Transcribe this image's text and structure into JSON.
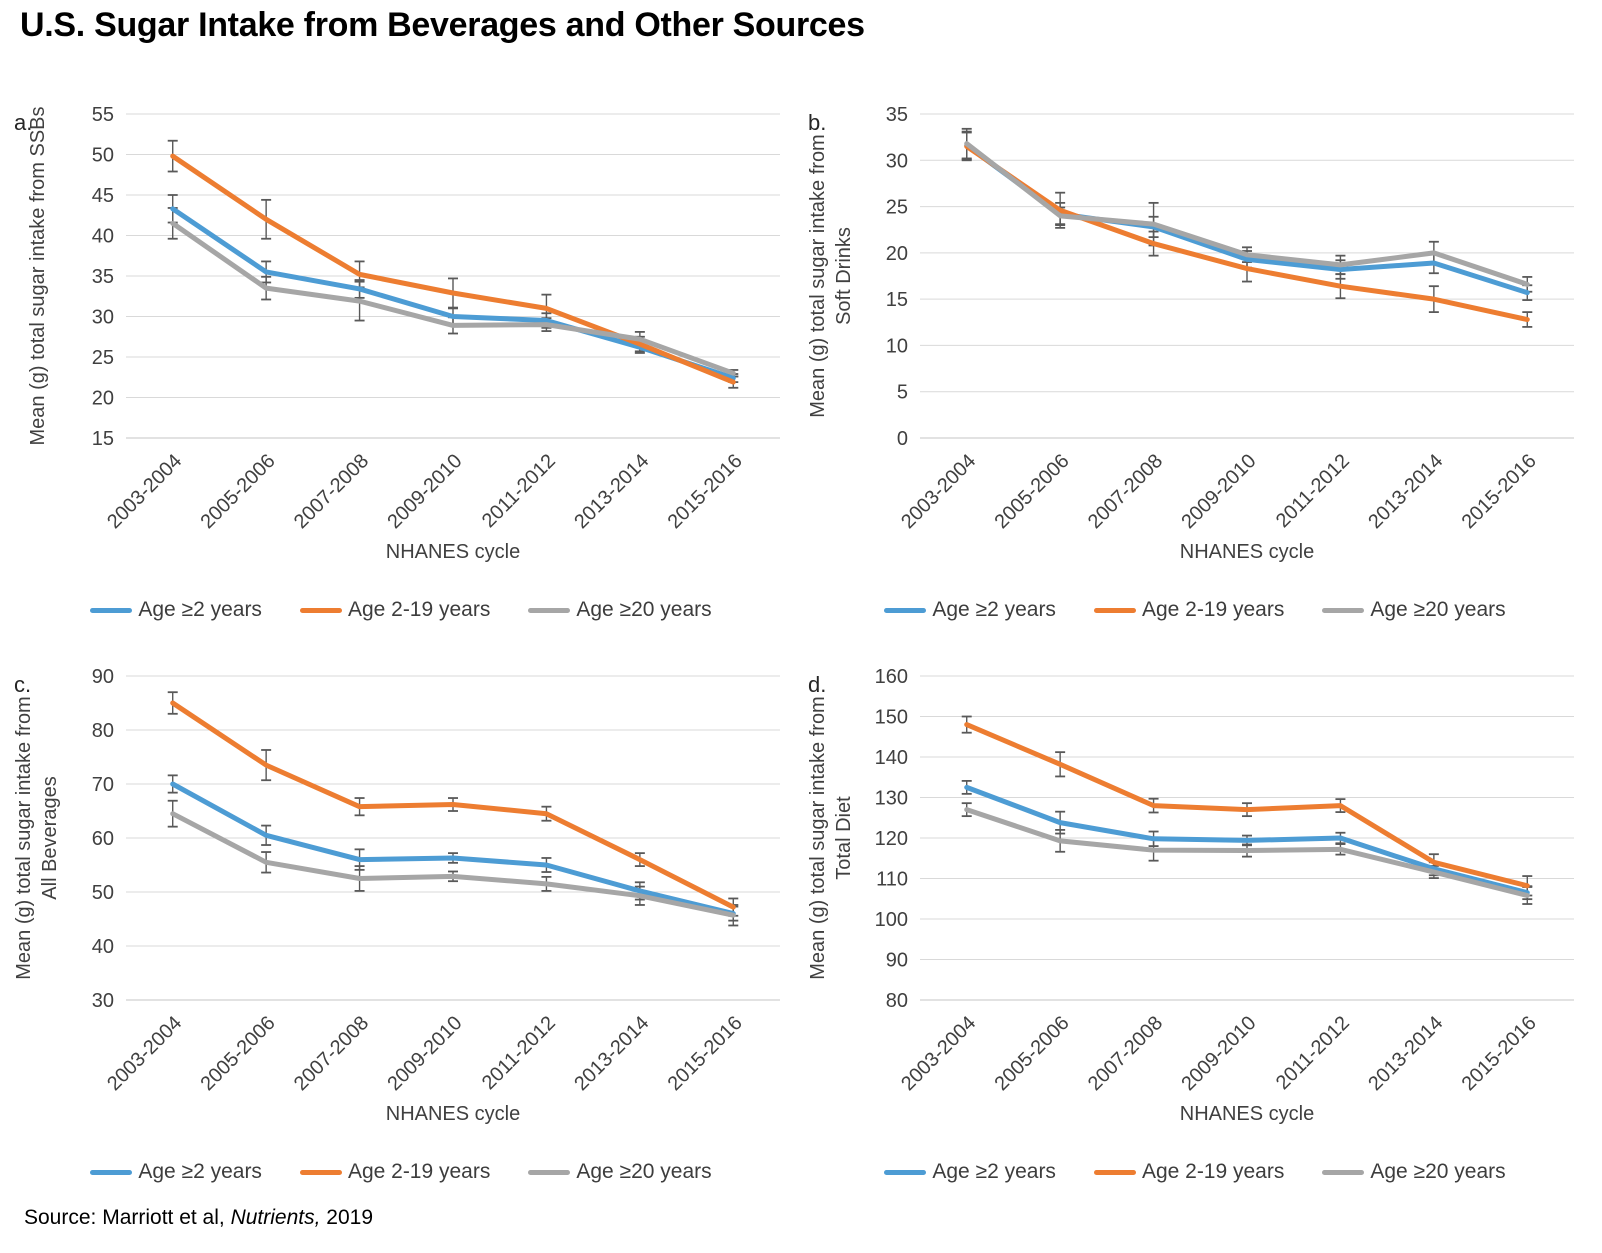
{
  "title": "U.S. Sugar Intake from Beverages and Other Sources",
  "source": {
    "prefix": "Source: Marriott et al, ",
    "italic": "Nutrients,",
    "suffix": " 2019"
  },
  "legend": {
    "items": [
      {
        "label": "Age ≥2 years",
        "color": "#4D9CD4"
      },
      {
        "label": "Age 2-19 years",
        "color": "#ED7D31"
      },
      {
        "label": "Age ≥20 years",
        "color": "#A6A6A6"
      }
    ]
  },
  "chart_data": [
    {
      "type": "line",
      "letter": "a.",
      "ylabel": "Mean (g) total sugar intake from SSBs",
      "ylabel_lines": [
        "Mean (g) total sugar intake from SSBs"
      ],
      "xlabel": "NHANES cycle",
      "ylim": [
        15,
        55
      ],
      "ytick_step": 5,
      "grid": true,
      "legend_position": "bottom",
      "categories": [
        "2003-2004",
        "2005-2006",
        "2007-2008",
        "2009-2010",
        "2011-2012",
        "2013-2014",
        "2015-2016"
      ],
      "series": [
        {
          "name": "Age ≥2 years",
          "color": "#4D9CD4",
          "values": [
            43.3,
            35.5,
            33.4,
            30.0,
            29.5,
            26.2,
            22.4
          ],
          "errors": [
            1.7,
            1.3,
            1.1,
            1.0,
            0.9,
            0.7,
            0.5
          ]
        },
        {
          "name": "Age 2-19 years",
          "color": "#ED7D31",
          "values": [
            49.8,
            42.0,
            35.2,
            32.9,
            31.0,
            26.6,
            21.9
          ],
          "errors": [
            1.9,
            2.4,
            1.6,
            1.8,
            1.7,
            0.9,
            0.7
          ]
        },
        {
          "name": "Age ≥20 years",
          "color": "#A6A6A6",
          "values": [
            41.5,
            33.5,
            31.9,
            28.9,
            29.0,
            27.2,
            23.0
          ],
          "errors": [
            1.9,
            1.4,
            2.4,
            1.0,
            0.8,
            0.9,
            0.4
          ]
        }
      ]
    },
    {
      "type": "line",
      "letter": "b.",
      "ylabel": "Mean (g) total sugar intake from Soft Drinks",
      "ylabel_lines": [
        "Mean (g) total sugar intake from",
        "Soft Drinks"
      ],
      "xlabel": "NHANES cycle",
      "ylim": [
        0,
        35
      ],
      "ytick_step": 5,
      "grid": true,
      "legend_position": "bottom",
      "categories": [
        "2003-2004",
        "2005-2006",
        "2007-2008",
        "2009-2010",
        "2011-2012",
        "2013-2014",
        "2015-2016"
      ],
      "series": [
        {
          "name": "Age ≥2 years",
          "color": "#4D9CD4",
          "values": [
            31.6,
            24.2,
            22.8,
            19.3,
            18.2,
            18.9,
            15.7
          ],
          "errors": [
            1.5,
            1.2,
            1.1,
            0.9,
            1.0,
            1.1,
            0.8
          ]
        },
        {
          "name": "Age 2-19 years",
          "color": "#ED7D31",
          "values": [
            31.5,
            24.6,
            21.0,
            18.3,
            16.4,
            15.0,
            12.8
          ],
          "errors": [
            1.5,
            1.9,
            1.3,
            1.4,
            1.3,
            1.4,
            0.8
          ]
        },
        {
          "name": "Age ≥20 years",
          "color": "#A6A6A6",
          "values": [
            31.8,
            24.0,
            23.1,
            19.8,
            18.7,
            20.0,
            16.6
          ],
          "errors": [
            1.6,
            0.9,
            2.3,
            0.8,
            1.0,
            1.2,
            0.8
          ]
        }
      ]
    },
    {
      "type": "line",
      "letter": "c.",
      "ylabel": "Mean (g) total sugar intake from All Beverages",
      "ylabel_lines": [
        "Mean (g) total sugar intake from",
        "All Beverages"
      ],
      "xlabel": "NHANES cycle",
      "ylim": [
        30,
        90
      ],
      "ytick_step": 10,
      "grid": true,
      "legend_position": "bottom",
      "categories": [
        "2003-2004",
        "2005-2006",
        "2007-2008",
        "2009-2010",
        "2011-2012",
        "2013-2014",
        "2015-2016"
      ],
      "series": [
        {
          "name": "Age ≥2 years",
          "color": "#4D9CD4",
          "values": [
            70.0,
            60.5,
            56.0,
            56.3,
            55.0,
            50.2,
            46.0
          ],
          "errors": [
            1.6,
            1.8,
            1.9,
            0.9,
            1.3,
            1.6,
            1.3
          ]
        },
        {
          "name": "Age 2-19 years",
          "color": "#ED7D31",
          "values": [
            85.0,
            73.5,
            65.8,
            66.2,
            64.5,
            56.0,
            47.2
          ],
          "errors": [
            2.0,
            2.8,
            1.6,
            1.2,
            1.3,
            1.2,
            1.6
          ]
        },
        {
          "name": "Age ≥20 years",
          "color": "#A6A6A6",
          "values": [
            64.5,
            55.5,
            52.5,
            52.9,
            51.5,
            49.3,
            45.7
          ],
          "errors": [
            2.4,
            1.9,
            2.3,
            0.9,
            1.3,
            1.7,
            1.9
          ]
        }
      ]
    },
    {
      "type": "line",
      "letter": "d.",
      "ylabel": "Mean (g) total sugar intake from Total Diet",
      "ylabel_lines": [
        "Mean (g) total sugar intake from",
        "Total Diet"
      ],
      "xlabel": "NHANES cycle",
      "ylim": [
        80,
        160
      ],
      "ytick_step": 10,
      "grid": true,
      "legend_position": "bottom",
      "categories": [
        "2003-2004",
        "2005-2006",
        "2007-2008",
        "2009-2010",
        "2011-2012",
        "2013-2014",
        "2015-2016"
      ],
      "series": [
        {
          "name": "Age ≥2 years",
          "color": "#4D9CD4",
          "values": [
            132.5,
            123.8,
            119.8,
            119.4,
            120.0,
            112.4,
            106.5
          ],
          "errors": [
            1.6,
            2.7,
            1.8,
            1.2,
            1.3,
            1.6,
            1.6
          ]
        },
        {
          "name": "Age 2-19 years",
          "color": "#ED7D31",
          "values": [
            148.0,
            138.2,
            128.0,
            127.0,
            128.0,
            114.0,
            108.2
          ],
          "errors": [
            2.0,
            3.0,
            1.7,
            1.6,
            1.6,
            2.0,
            2.4
          ]
        },
        {
          "name": "Age ≥20 years",
          "color": "#A6A6A6",
          "values": [
            127.0,
            119.3,
            117.0,
            116.9,
            117.2,
            111.6,
            105.8
          ],
          "errors": [
            1.6,
            2.7,
            2.6,
            1.5,
            1.3,
            1.5,
            2.1
          ]
        }
      ]
    }
  ]
}
